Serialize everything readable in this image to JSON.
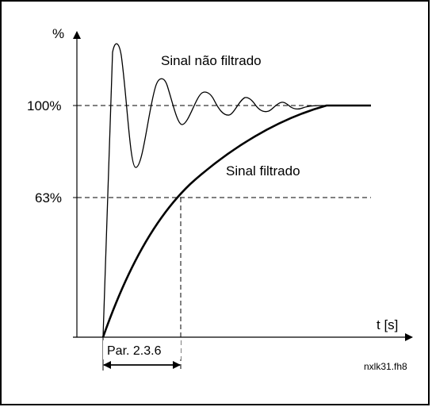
{
  "diagram": {
    "y_axis_label": "%",
    "x_axis_label": "t [s]",
    "level_100_label": "100%",
    "level_63_label": "63%",
    "unfiltered_label": "Sinal não filtrado",
    "filtered_label": "Sinal filtrado",
    "parameter_label": "Par. 2.3.6",
    "file_tag": "nxlk31.fh8"
  }
}
